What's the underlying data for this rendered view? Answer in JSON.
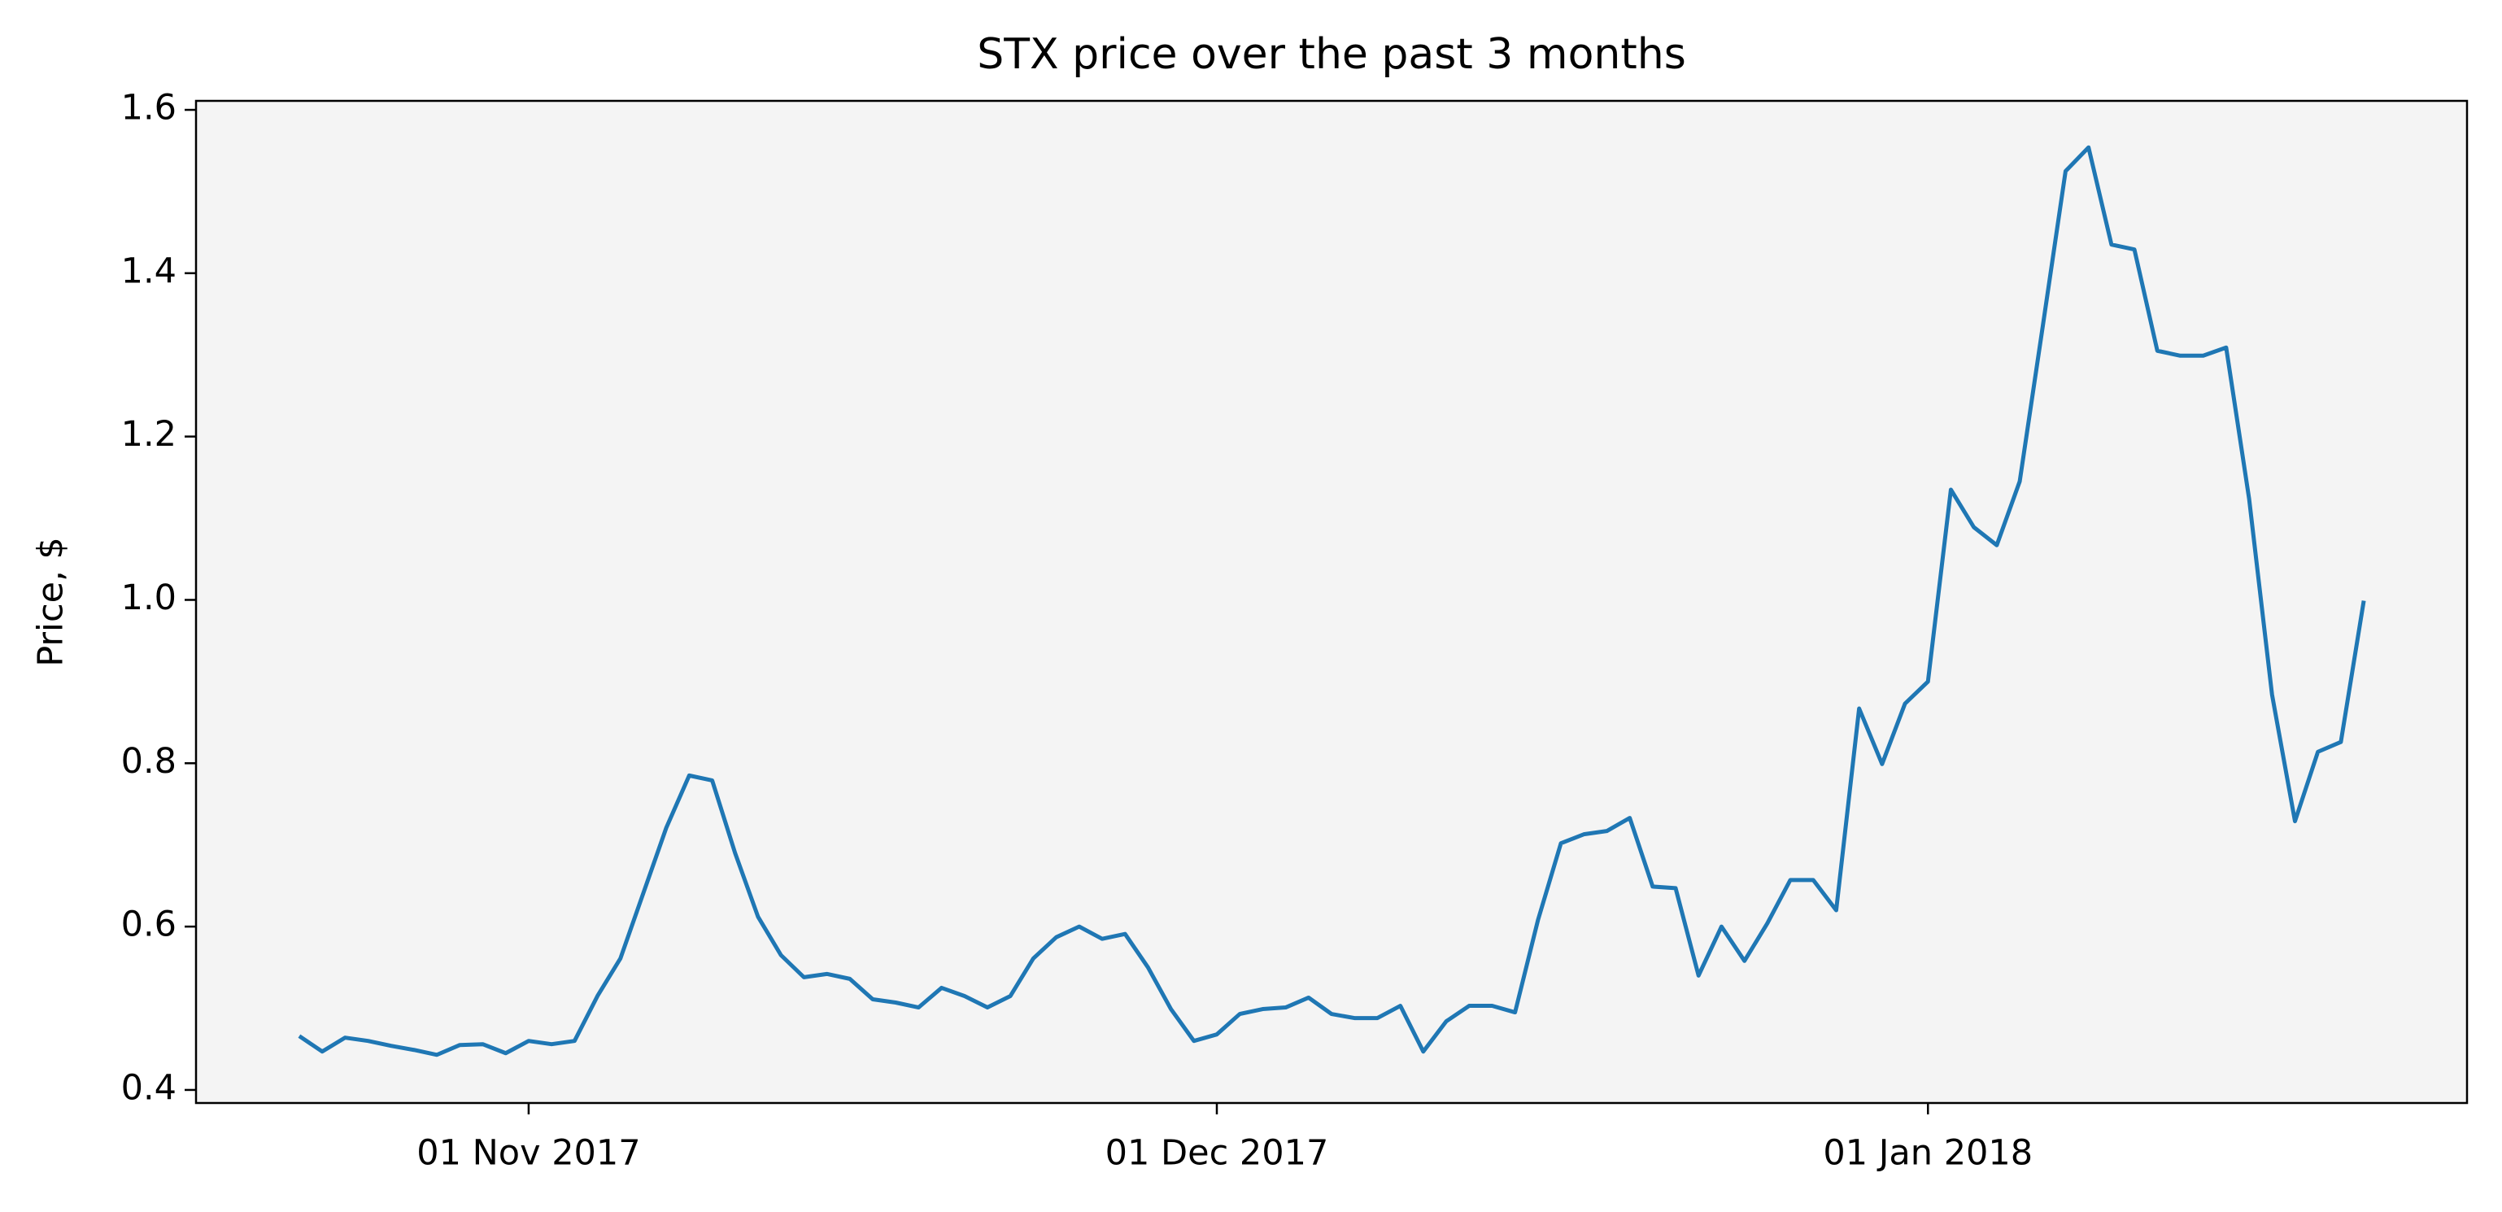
{
  "chart_data": {
    "type": "line",
    "title": "STX price over the past 3 months",
    "y_label": "Price, $",
    "x": [
      "2017-10-22",
      "2017-10-23",
      "2017-10-24",
      "2017-10-25",
      "2017-10-26",
      "2017-10-27",
      "2017-10-28",
      "2017-10-29",
      "2017-10-30",
      "2017-10-31",
      "2017-11-01",
      "2017-11-02",
      "2017-11-03",
      "2017-11-04",
      "2017-11-05",
      "2017-11-06",
      "2017-11-07",
      "2017-11-08",
      "2017-11-09",
      "2017-11-10",
      "2017-11-11",
      "2017-11-12",
      "2017-11-13",
      "2017-11-14",
      "2017-11-15",
      "2017-11-16",
      "2017-11-17",
      "2017-11-18",
      "2017-11-19",
      "2017-11-20",
      "2017-11-21",
      "2017-11-22",
      "2017-11-23",
      "2017-11-24",
      "2017-11-25",
      "2017-11-26",
      "2017-11-27",
      "2017-11-28",
      "2017-11-29",
      "2017-11-30",
      "2017-12-01",
      "2017-12-02",
      "2017-12-03",
      "2017-12-04",
      "2017-12-05",
      "2017-12-06",
      "2017-12-07",
      "2017-12-08",
      "2017-12-09",
      "2017-12-10",
      "2017-12-11",
      "2017-12-12",
      "2017-12-13",
      "2017-12-14",
      "2017-12-15",
      "2017-12-16",
      "2017-12-17",
      "2017-12-18",
      "2017-12-19",
      "2017-12-20",
      "2017-12-21",
      "2017-12-22",
      "2017-12-23",
      "2017-12-24",
      "2017-12-25",
      "2017-12-26",
      "2017-12-27",
      "2017-12-28",
      "2017-12-29",
      "2017-12-30",
      "2017-12-31",
      "2018-01-01",
      "2018-01-02",
      "2018-01-03",
      "2018-01-04",
      "2018-01-05",
      "2018-01-06",
      "2018-01-07",
      "2018-01-08",
      "2018-01-09",
      "2018-01-10",
      "2018-01-11",
      "2018-01-12",
      "2018-01-13",
      "2018-01-14",
      "2018-01-15",
      "2018-01-16",
      "2018-01-17",
      "2018-01-18",
      "2018-01-19",
      "2018-01-20"
    ],
    "values": [
      0.466,
      0.447,
      0.464,
      0.46,
      0.454,
      0.449,
      0.443,
      0.455,
      0.456,
      0.445,
      0.46,
      0.456,
      0.46,
      0.515,
      0.561,
      0.641,
      0.721,
      0.785,
      0.779,
      0.69,
      0.612,
      0.565,
      0.538,
      0.542,
      0.536,
      0.511,
      0.507,
      0.501,
      0.525,
      0.515,
      0.501,
      0.515,
      0.561,
      0.587,
      0.6,
      0.585,
      0.591,
      0.55,
      0.499,
      0.46,
      0.468,
      0.493,
      0.499,
      0.501,
      0.513,
      0.493,
      0.488,
      0.488,
      0.503,
      0.447,
      0.484,
      0.503,
      0.503,
      0.495,
      0.608,
      0.702,
      0.713,
      0.717,
      0.733,
      0.649,
      0.647,
      0.54,
      0.6,
      0.558,
      0.604,
      0.657,
      0.657,
      0.62,
      0.867,
      0.799,
      0.873,
      0.9,
      1.135,
      1.089,
      1.067,
      1.145,
      1.334,
      1.525,
      1.554,
      1.435,
      1.429,
      1.305,
      1.299,
      1.299,
      1.309,
      1.124,
      0.884,
      0.729,
      0.814,
      0.826,
      0.999
    ],
    "color": "#1f77b4",
    "background": "#f4f4f4",
    "xlim": [
      "2017-10-17T12:00",
      "2018-01-24T12:00"
    ],
    "xticks": [
      {
        "value": "2017-11-01",
        "label": "01 Nov 2017"
      },
      {
        "value": "2017-12-01",
        "label": "01 Dec 2017"
      },
      {
        "value": "2018-01-01",
        "label": "01 Jan 2018"
      }
    ],
    "ylim": [
      0.384,
      1.611
    ],
    "yticks": [
      {
        "value": 0.4,
        "label": "0.4"
      },
      {
        "value": 0.6,
        "label": "0.6"
      },
      {
        "value": 0.8,
        "label": "0.8"
      },
      {
        "value": 1.0,
        "label": "1.0"
      },
      {
        "value": 1.2,
        "label": "1.2"
      },
      {
        "value": 1.4,
        "label": "1.4"
      },
      {
        "value": 1.6,
        "label": "1.6"
      }
    ]
  }
}
